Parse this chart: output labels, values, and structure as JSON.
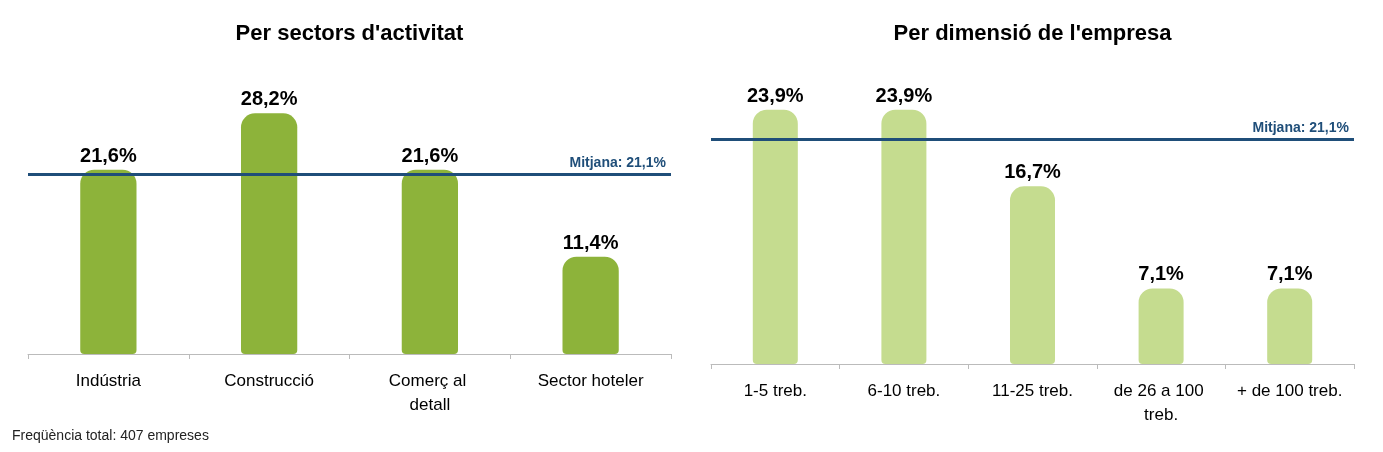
{
  "chart_data": [
    {
      "type": "bar",
      "title": "Per sectors d'activitat",
      "categories": [
        "Indústria",
        "Construcció",
        "Comerç al detall",
        "Sector hoteler"
      ],
      "values": [
        21.6,
        28.2,
        21.6,
        11.4
      ],
      "color": "#8db33a",
      "value_labels": [
        "21,6%",
        "28,2%",
        "21,6%",
        "11,4%"
      ],
      "ref_lines": [
        {
          "axis": "y",
          "value": 21.1,
          "label": "Mitjana: 21,1%",
          "color": "#1f4e79"
        }
      ],
      "annotations": [
        "Freqüència total: 407 empreses"
      ]
    },
    {
      "type": "bar",
      "title": "Per dimensió de l'empresa",
      "categories": [
        "1-5 treb.",
        "6-10 treb.",
        "11-25 treb.",
        "de 26 a 100 treb.",
        "+ de 100 treb."
      ],
      "values": [
        23.9,
        23.9,
        16.7,
        7.1,
        7.1
      ],
      "color": "#c5dc8f",
      "value_labels": [
        "23,9%",
        "23,9%",
        "16,7%",
        "7,1%",
        "7,1%"
      ],
      "ref_lines": [
        {
          "axis": "y",
          "value": 21.1,
          "label": "Mitjana: 21,1%",
          "color": "#1f4e79"
        }
      ]
    }
  ]
}
